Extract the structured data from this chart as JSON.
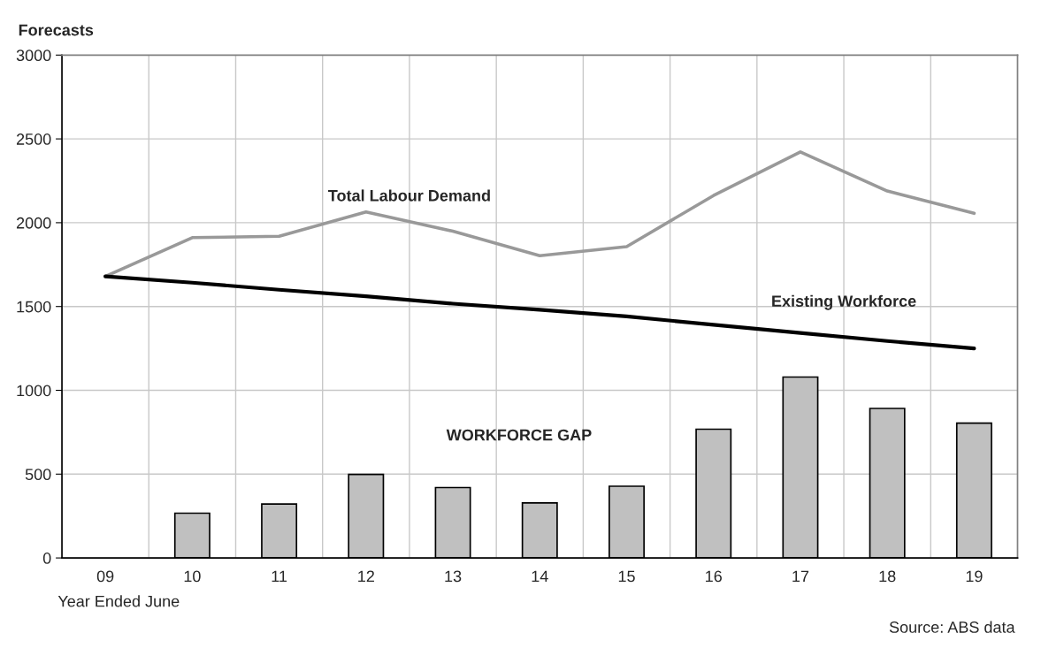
{
  "chart_data": {
    "type": "line",
    "ylabel": "Forecasts",
    "xlabel": "Year Ended June",
    "categories": [
      "09",
      "10",
      "11",
      "12",
      "13",
      "14",
      "15",
      "16",
      "17",
      "18",
      "19"
    ],
    "series": [
      {
        "name": "Total Labour Demand",
        "color": "#999999",
        "values": [
          1680,
          1911,
          1919,
          2064,
          1949,
          1803,
          1857,
          2162,
          2422,
          2189,
          2056
        ]
      },
      {
        "name": "Existing Workforce",
        "color": "#000000",
        "values": [
          1680,
          1642,
          1600,
          1561,
          1517,
          1481,
          1441,
          1391,
          1342,
          1294,
          1250
        ]
      },
      {
        "name": "WORKFORCE GAP",
        "type": "bar",
        "color": "#c0c0c0",
        "values": [
          null,
          267,
          322,
          498,
          420,
          328,
          428,
          768,
          1079,
          892,
          804
        ]
      }
    ],
    "ylim": [
      0,
      3000
    ],
    "yticks": [
      0,
      500,
      1000,
      1500,
      2000,
      2500,
      3000
    ],
    "grid": true,
    "legend": false,
    "marker": "none",
    "line_style": "solid",
    "annotations": [
      "Source: ABS data"
    ]
  }
}
